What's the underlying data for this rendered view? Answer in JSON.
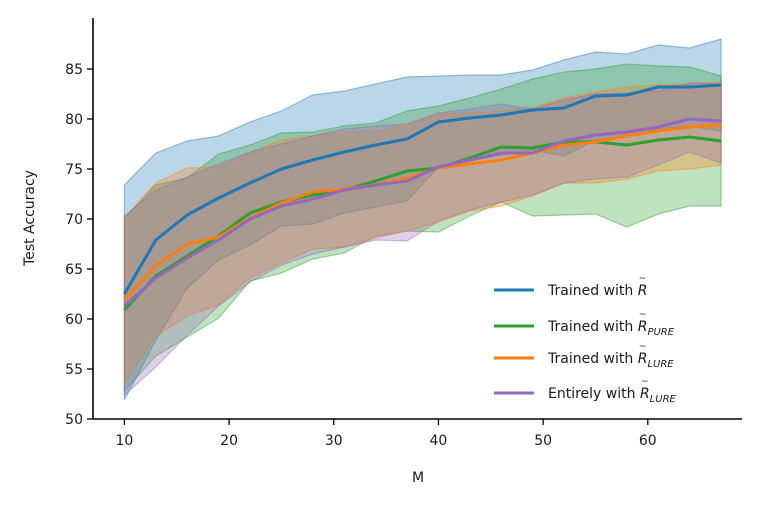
{
  "chart_data": {
    "type": "line",
    "title": "",
    "xlabel": "M",
    "ylabel": "Test Accuracy",
    "xlim": [
      7,
      69
    ],
    "ylim": [
      50,
      90
    ],
    "xticks": [
      10,
      20,
      30,
      40,
      50,
      60
    ],
    "yticks": [
      50,
      55,
      60,
      65,
      70,
      75,
      80,
      85
    ],
    "grid": false,
    "legend_position": "lower-right",
    "x": [
      10,
      13,
      16,
      19,
      22,
      25,
      28,
      31,
      34,
      37,
      40,
      43,
      46,
      49,
      52,
      55,
      58,
      61,
      64,
      67
    ],
    "series": [
      {
        "name": "Trained with R̃",
        "legend_prefix": "Trained with ",
        "symbol": "R",
        "subscript": "",
        "color": "#1f77b4",
        "values": [
          62.5,
          67.9,
          70.4,
          72.1,
          73.6,
          75.0,
          75.9,
          76.7,
          77.4,
          78.0,
          79.7,
          80.1,
          80.4,
          80.9,
          81.1,
          82.3,
          82.4,
          83.2,
          83.2,
          83.4
        ],
        "upper": [
          73.4,
          76.6,
          77.8,
          78.3,
          79.7,
          80.8,
          82.4,
          82.8,
          83.5,
          84.2,
          84.3,
          84.4,
          84.4,
          84.9,
          85.9,
          86.7,
          86.5,
          87.4,
          87.1,
          88.0
        ],
        "lower": [
          51.9,
          57.9,
          63.1,
          65.9,
          67.4,
          69.3,
          69.5,
          70.6,
          71.2,
          71.8,
          75.2,
          75.8,
          76.4,
          76.9,
          76.3,
          77.9,
          78.3,
          79.0,
          79.3,
          78.8
        ]
      },
      {
        "name": "Trained with R̃PURE",
        "legend_prefix": "Trained with ",
        "symbol": "R",
        "subscript": "PURE",
        "color": "#2ca02c",
        "values": [
          60.9,
          64.3,
          66.3,
          68.3,
          70.6,
          71.7,
          72.4,
          72.9,
          73.8,
          74.8,
          75.1,
          76.1,
          77.2,
          77.1,
          77.7,
          77.7,
          77.4,
          77.9,
          78.2,
          77.8
        ],
        "upper": [
          70.1,
          73.4,
          74.1,
          76.5,
          77.4,
          78.6,
          78.7,
          79.3,
          79.6,
          80.8,
          81.3,
          82.1,
          83.0,
          84.0,
          84.7,
          85.0,
          85.5,
          85.3,
          85.2,
          84.3
        ],
        "lower": [
          52.8,
          56.3,
          58.2,
          60.1,
          63.8,
          64.6,
          66.0,
          66.6,
          68.3,
          68.8,
          68.7,
          70.3,
          71.7,
          70.3,
          70.4,
          70.5,
          69.2,
          70.5,
          71.3,
          71.3
        ]
      },
      {
        "name": "Trained with R̃LURE",
        "legend_prefix": "Trained with ",
        "symbol": "R",
        "subscript": "LURE",
        "color": "#ff7f0e",
        "values": [
          61.9,
          65.3,
          67.5,
          68.2,
          70.1,
          71.6,
          72.7,
          73.0,
          73.4,
          74.1,
          75.1,
          75.5,
          75.9,
          76.6,
          77.4,
          77.7,
          78.3,
          78.8,
          79.2,
          79.4
        ],
        "upper": [
          70.1,
          73.6,
          75.1,
          75.2,
          76.6,
          77.9,
          78.3,
          78.7,
          78.8,
          79.4,
          80.5,
          80.6,
          80.8,
          81.1,
          82.1,
          82.7,
          83.2,
          83.4,
          83.5,
          83.7
        ],
        "lower": [
          53.6,
          58.3,
          60.3,
          61.4,
          64.1,
          65.6,
          67.0,
          67.2,
          68.1,
          68.8,
          69.7,
          70.8,
          71.3,
          72.3,
          73.6,
          73.6,
          74.0,
          74.8,
          75.0,
          75.4
        ]
      },
      {
        "name": "Entirely with R̃LURE",
        "legend_prefix": "Entirely with ",
        "symbol": "R",
        "subscript": "LURE",
        "color": "#9467bd",
        "values": [
          61.3,
          64.1,
          66.1,
          67.9,
          70.0,
          71.3,
          72.0,
          72.9,
          73.4,
          73.8,
          75.2,
          75.9,
          76.6,
          76.6,
          77.8,
          78.4,
          78.7,
          79.2,
          80.0,
          79.8
        ],
        "upper": [
          70.3,
          72.9,
          74.2,
          75.5,
          76.7,
          77.5,
          78.3,
          79.0,
          79.3,
          79.5,
          80.6,
          81.0,
          81.5,
          81.0,
          81.9,
          82.5,
          82.6,
          82.8,
          83.6,
          83.5
        ],
        "lower": [
          52.4,
          55.2,
          58.4,
          61.3,
          63.7,
          65.4,
          66.5,
          67.2,
          67.9,
          67.8,
          69.8,
          70.9,
          71.7,
          72.4,
          73.6,
          74.0,
          74.2,
          75.4,
          76.7,
          75.6
        ]
      }
    ]
  }
}
